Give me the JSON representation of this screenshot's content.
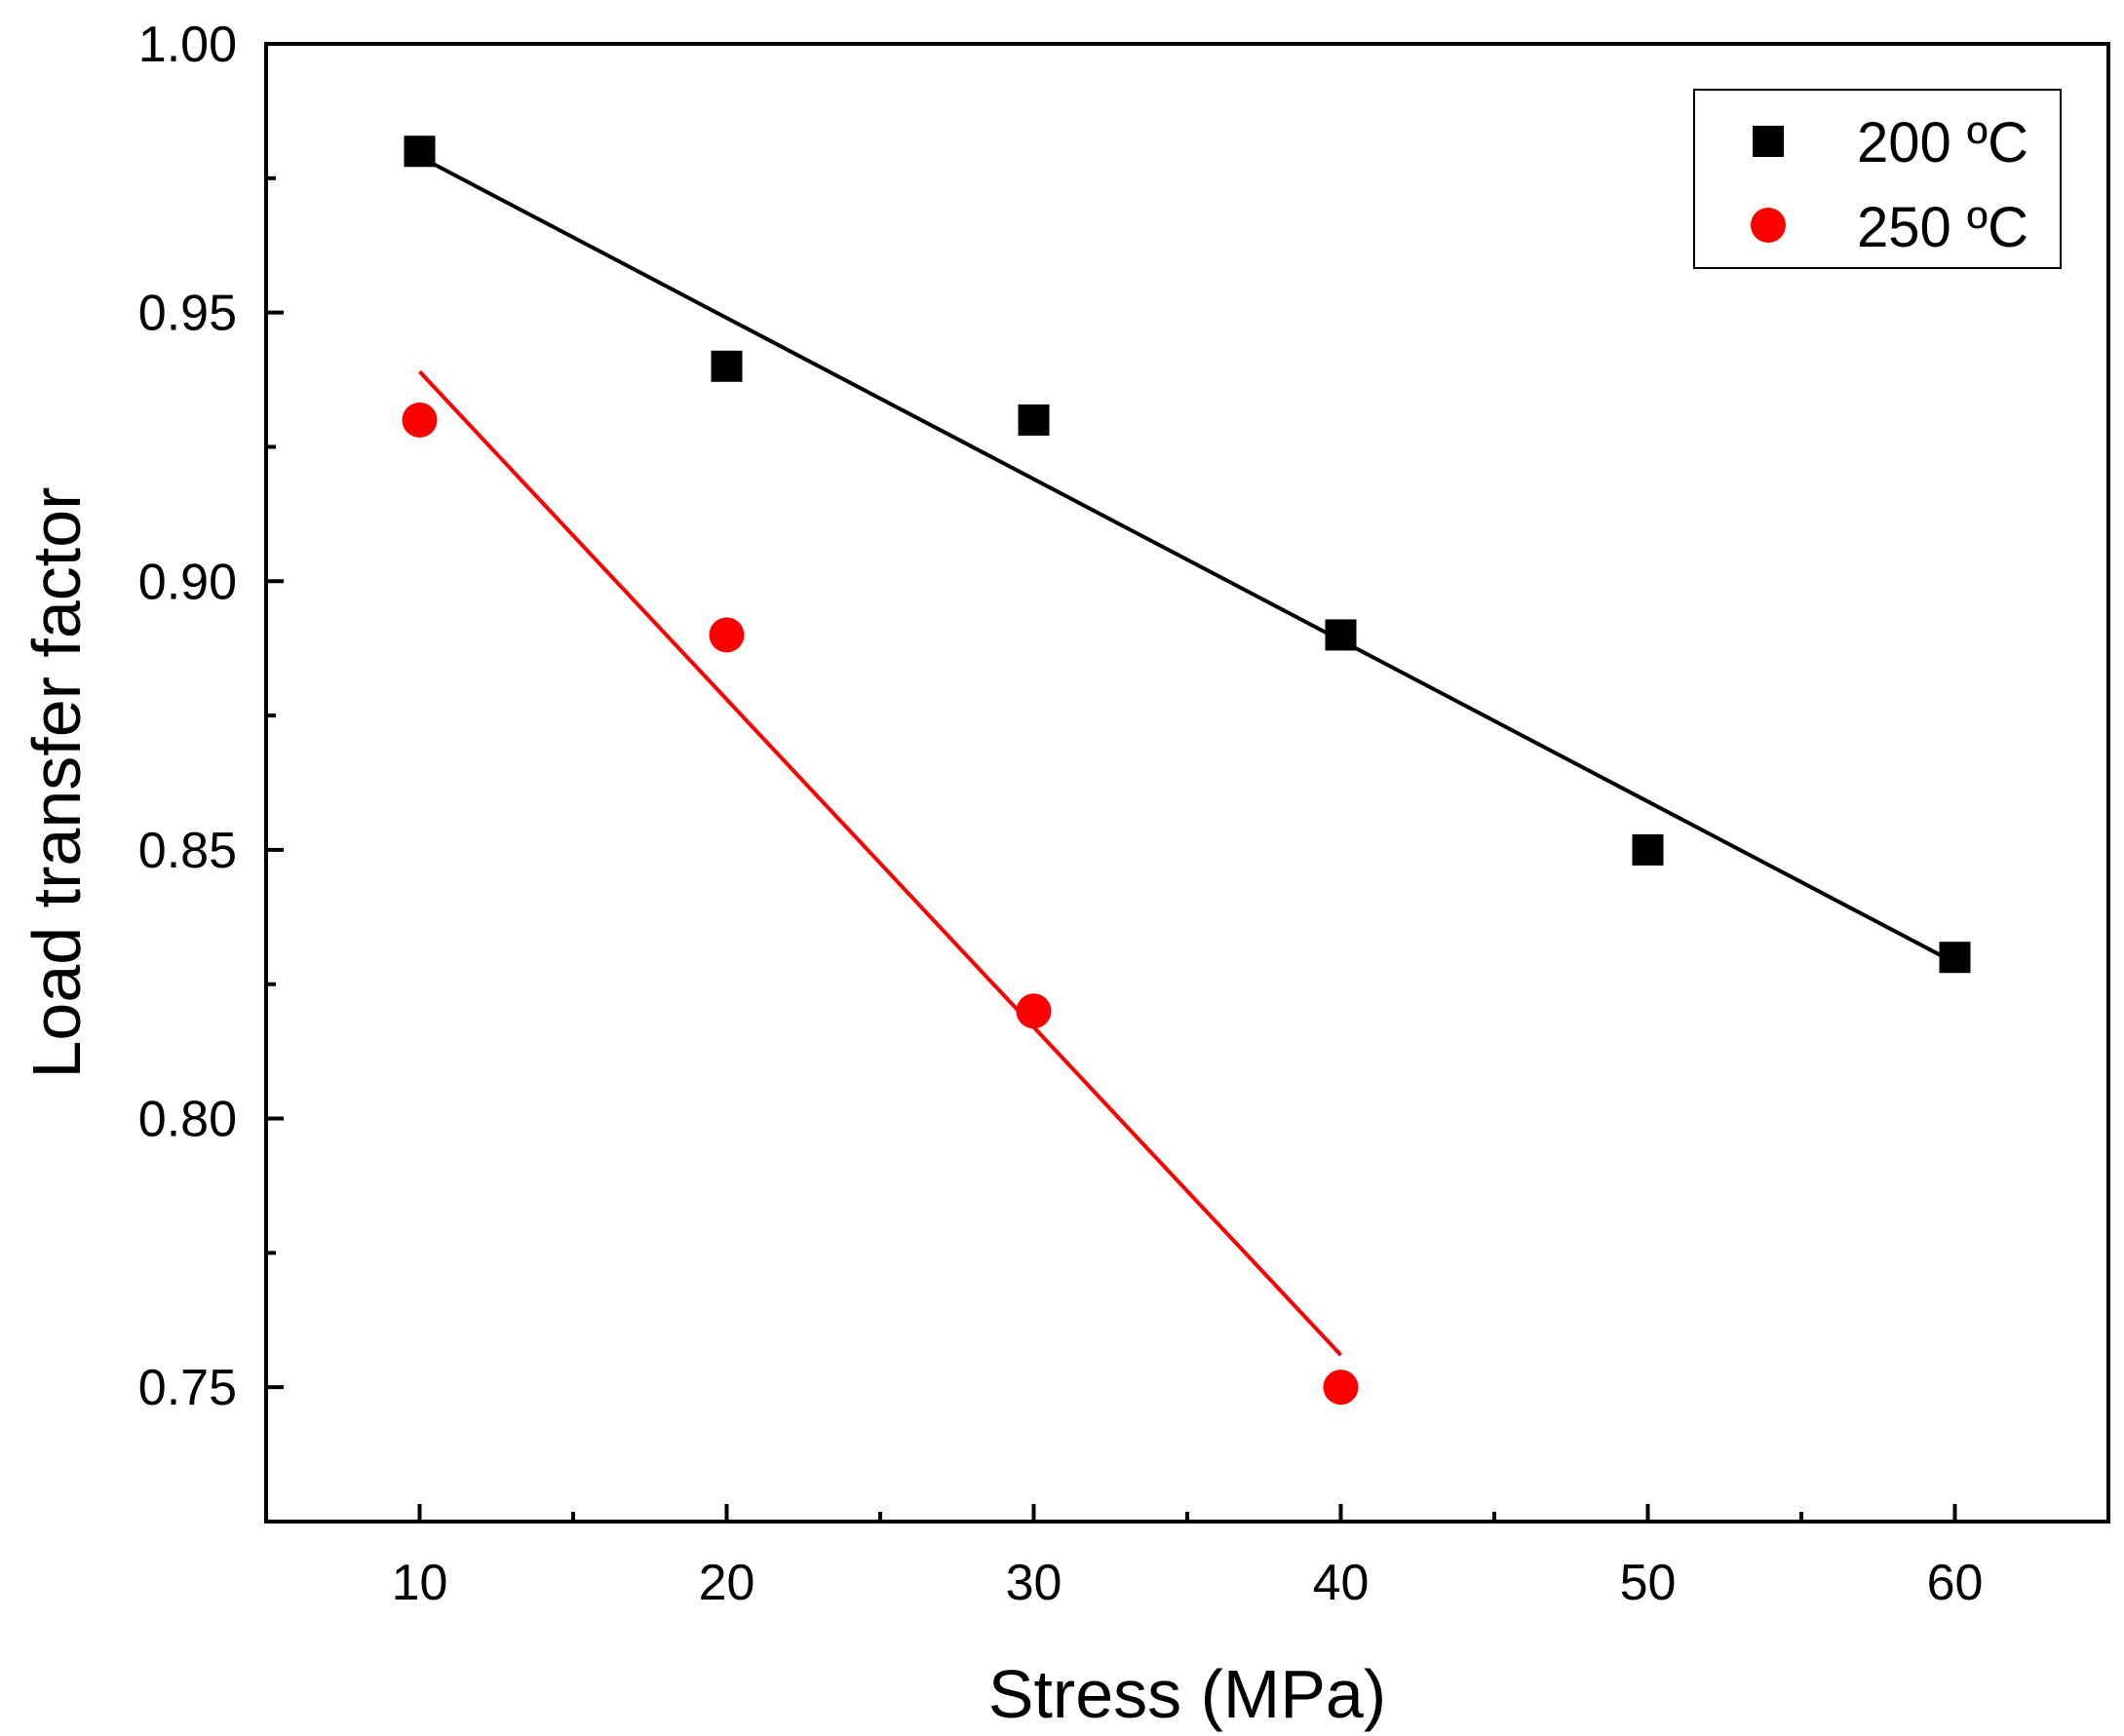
{
  "chart_data": {
    "type": "scatter",
    "xlabel": "Stress (MPa)",
    "ylabel": "Load transfer factor",
    "xlim": [
      5,
      65
    ],
    "ylim": [
      0.725,
      1.0
    ],
    "x_ticks": [
      10,
      20,
      30,
      40,
      50,
      60
    ],
    "x_tick_labels": [
      "10",
      "20",
      "30",
      "40",
      "50",
      "60"
    ],
    "y_ticks": [
      0.75,
      0.8,
      0.85,
      0.9,
      0.95,
      1.0
    ],
    "y_tick_labels": [
      "0.75",
      "0.80",
      "0.85",
      "0.90",
      "0.95",
      "1.00"
    ],
    "x_minor_ticks": [
      15,
      25,
      35,
      45,
      55
    ],
    "y_minor_ticks": [
      0.775,
      0.825,
      0.875,
      0.925,
      0.975
    ],
    "legend_position": "top-right",
    "series": [
      {
        "name": "200 ºC",
        "marker": "square",
        "color": "#000000",
        "x": [
          10,
          20,
          30,
          40,
          50,
          60
        ],
        "y": [
          0.98,
          0.94,
          0.93,
          0.89,
          0.85,
          0.83
        ],
        "fit": {
          "x": [
            10,
            60
          ],
          "y": [
            0.979,
            0.829
          ]
        }
      },
      {
        "name": "250 ºC",
        "marker": "circle",
        "color": "#ff0000",
        "x": [
          10,
          20,
          30,
          40
        ],
        "y": [
          0.93,
          0.89,
          0.82,
          0.75
        ],
        "fit": {
          "x": [
            10,
            40
          ],
          "y": [
            0.939,
            0.756
          ]
        }
      }
    ]
  }
}
